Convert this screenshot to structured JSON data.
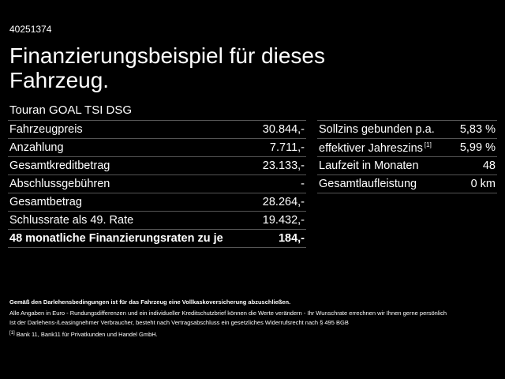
{
  "id": "40251374",
  "title": "Finanzierungsbeispiel für dieses Fahrzeug.",
  "model": "Touran GOAL TSI DSG",
  "left_table": {
    "rows": [
      {
        "label": "Fahrzeugpreis",
        "value": "30.844,-"
      },
      {
        "label": "Anzahlung",
        "value": "7.711,-"
      },
      {
        "label": "Gesamtkreditbetrag",
        "value": "23.133,-"
      },
      {
        "label": "Abschlussgebühren",
        "value": "-"
      },
      {
        "label": "Gesamtbetrag",
        "value": "28.264,-"
      },
      {
        "label": "Schlussrate als 49. Rate",
        "value": "19.432,-"
      },
      {
        "label": "48 monatliche Finanzierungsraten zu je",
        "value": "184,-"
      }
    ]
  },
  "right_table": {
    "rows": [
      {
        "label": "Sollzins gebunden p.a.",
        "value": "5,83 %"
      },
      {
        "label": "effektiver Jahreszins",
        "ref": "[1]",
        "value": "5,99 %"
      },
      {
        "label": "Laufzeit in Monaten",
        "value": "48"
      },
      {
        "label": "Gesamtlaufleistung",
        "value": "0 km"
      }
    ]
  },
  "notes": {
    "conditions": "Gemäß den Darlehensbedingungen ist für das Fahrzeug eine Vollkaskoversicherung abzuschließen.",
    "lines": [
      "Alle Angaben in Euro - Rundungsdifferenzen und ein individueller Kreditschutzbrief können die Werte verändern - Ihr Wunschrate errechnen wir Ihnen gerne persönlich",
      "Ist der Darlehens-/Leasingnehmer Verbraucher, besteht nach Vertragsabschluss ein gesetzliches Widerrufsrecht nach § 495 BGB"
    ],
    "footnote": {
      "marker": "[1]",
      "text": "Bank 11, Bank11 für Privatkunden und Handel GmbH."
    }
  }
}
